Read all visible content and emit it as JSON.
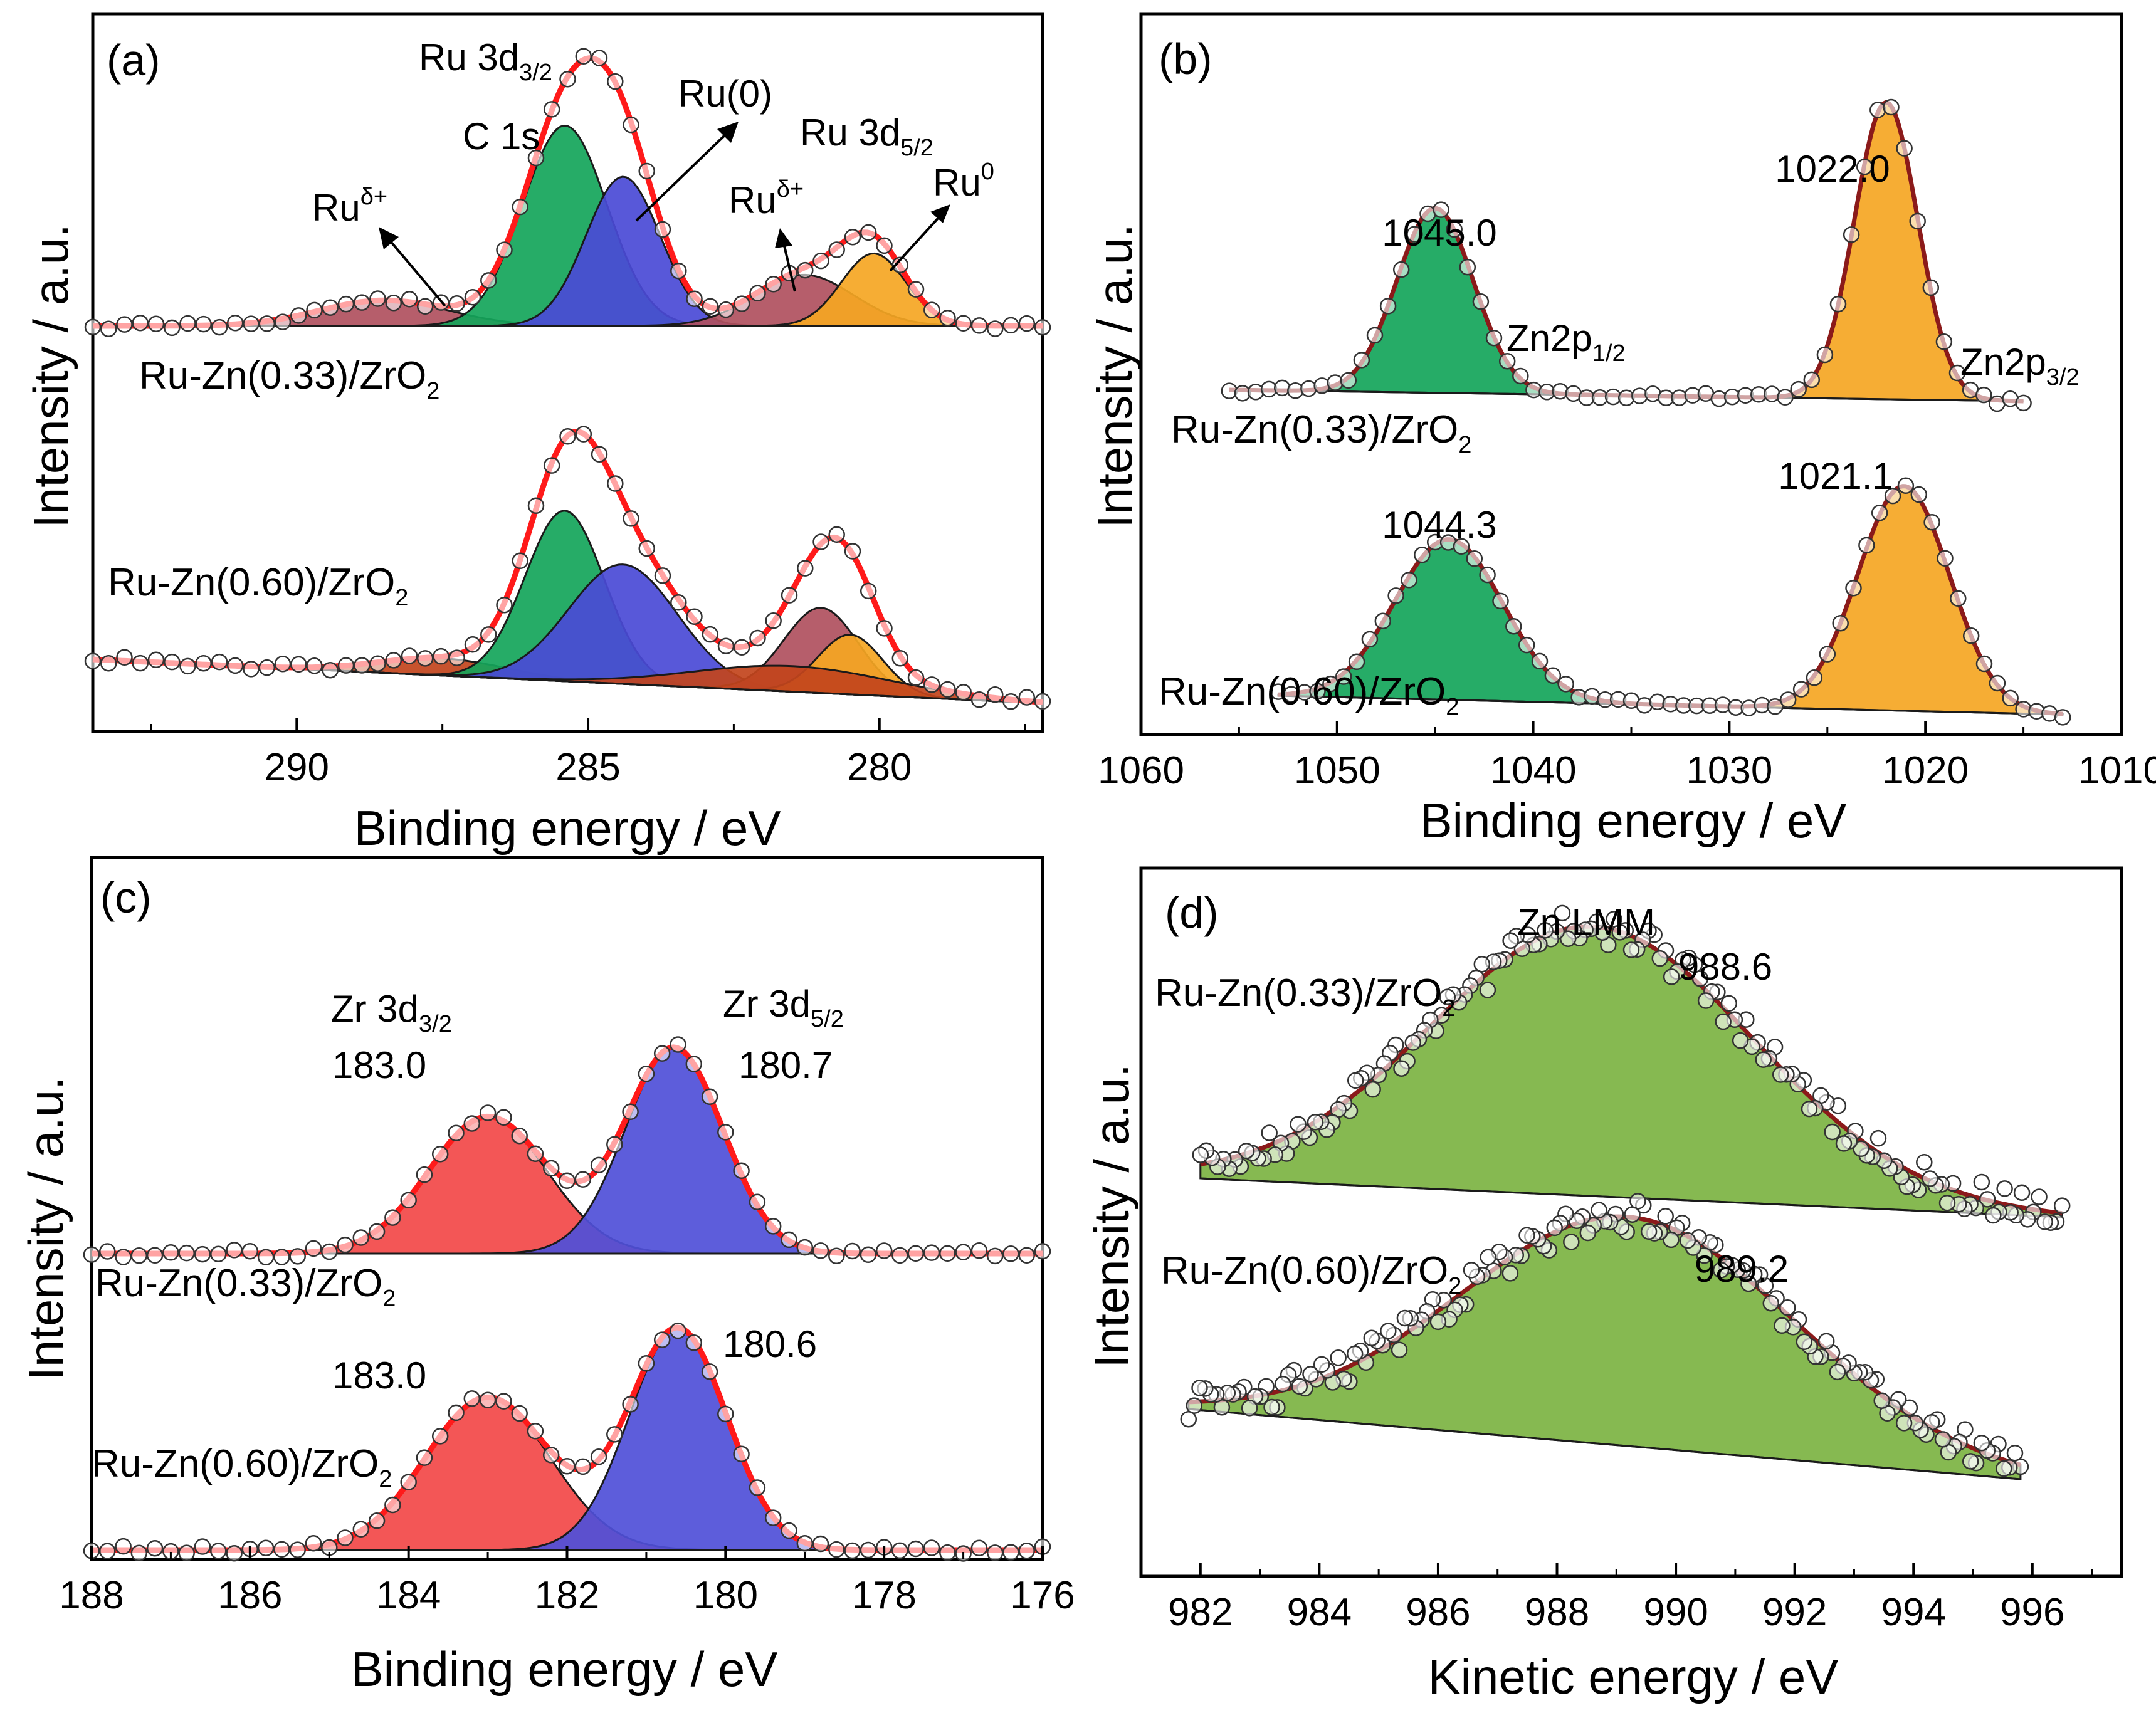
{
  "colors": {
    "fit": "#ff1a1a",
    "fit_dark": "#8b1a1a",
    "green": "#14a55a",
    "green_dark": "#0e7a52",
    "blue": "#4a4ad6",
    "mauve": "#b0505e",
    "rust": "#c2441c",
    "orange": "#f5a623",
    "red_fill": "#f24848",
    "blue_fill": "#4f4fd8",
    "olive": "#7cb342"
  },
  "chart_data": [
    {
      "id": "a",
      "type": "line",
      "panel_label": "(a)",
      "xlabel": "Binding energy  / eV",
      "ylabel": "Intensity / a.u.",
      "xlim": [
        293.5,
        277.2
      ],
      "xticks": [
        290,
        285,
        280
      ],
      "tick_labels": [
        "290",
        "285",
        "280"
      ],
      "samples": [
        {
          "name": "Ru-Zn(0.33)/ZrO2",
          "label_main": "Ru-Zn(0.33)/ZrO",
          "label_sub": "2",
          "baseline": 0.1,
          "components": [
            {
              "name": "Ruδ+ (3d3/2)",
              "center": 288.5,
              "height": 0.06,
              "fwhm": 2.6,
              "color": "mauve"
            },
            {
              "name": "C 1s",
              "center": 285.4,
              "height": 0.47,
              "fwhm": 1.7,
              "color": "green"
            },
            {
              "name": "Ru(0) 3d3/2",
              "center": 284.4,
              "height": 0.35,
              "fwhm": 1.5,
              "color": "blue"
            },
            {
              "name": "Ruδ+ (3d5/2)",
              "center": 281.3,
              "height": 0.12,
              "fwhm": 2.0,
              "color": "mauve"
            },
            {
              "name": "Ru0 3d5/2",
              "center": 280.1,
              "height": 0.17,
              "fwhm": 1.3,
              "color": "orange"
            }
          ]
        },
        {
          "name": "Ru-Zn(0.60)/ZrO2",
          "label_main": "Ru-Zn(0.60)/ZrO",
          "label_sub": "2",
          "baseline": 0.1,
          "components": [
            {
              "name": "Ruδ+ (3d3/2)",
              "center": 287.5,
              "height": 0.04,
              "fwhm": 2.6,
              "color": "rust"
            },
            {
              "name": "C 1s",
              "center": 285.4,
              "height": 0.4,
              "fwhm": 1.6,
              "color": "green"
            },
            {
              "name": "Ru(0) 3d3/2",
              "center": 284.4,
              "height": 0.28,
              "fwhm": 2.2,
              "color": "blue"
            },
            {
              "name": "Ruδ+ (3d5/2)",
              "center": 281.0,
              "height": 0.2,
              "fwhm": 1.5,
              "color": "mauve"
            },
            {
              "name": "Ru0 3d5/2",
              "center": 280.5,
              "height": 0.14,
              "fwhm": 1.3,
              "color": "orange"
            },
            {
              "name": "Ru (broad)",
              "center": 281.5,
              "height": 0.06,
              "fwhm": 4.0,
              "color": "rust"
            }
          ]
        }
      ],
      "annotations": [
        {
          "main": "Ru 3d",
          "sub": "3/2"
        },
        {
          "main": "C 1s"
        },
        {
          "main": "Ru(0)"
        },
        {
          "main": "Ru 3d",
          "sub": "5/2"
        },
        {
          "main": "Ru",
          "sup": "δ+"
        },
        {
          "main": "Ru",
          "sup": "δ+"
        },
        {
          "main": "Ru",
          "sup": "0"
        }
      ]
    },
    {
      "id": "b",
      "type": "line",
      "panel_label": "(b)",
      "xlabel": "Binding energy  / eV",
      "ylabel": "Intensity / a.u.",
      "xlim": [
        1060,
        1010
      ],
      "xticks": [
        1060,
        1050,
        1040,
        1030,
        1020,
        1010
      ],
      "tick_labels": [
        "1060",
        "1050",
        "1040",
        "1030",
        "1020",
        "1010"
      ],
      "samples": [
        {
          "name": "Ru-Zn(0.33)/ZrO2",
          "label_main": "Ru-Zn(0.33)/ZrO",
          "label_sub": "2",
          "range": [
            1055.5,
            1015.0
          ],
          "components": [
            {
              "name": "Zn2p1/2",
              "center": 1045.0,
              "height": 0.46,
              "fwhm": 4.6,
              "color": "green"
            },
            {
              "name": "Zn2p3/2",
              "center": 1022.0,
              "height": 0.74,
              "fwhm": 3.8,
              "color": "orange"
            }
          ],
          "peak_labels": [
            "1045.0",
            "1022.0"
          ]
        },
        {
          "name": "Ru-Zn(0.60)/ZrO2",
          "label_main": "Ru-Zn(0.60)/ZrO",
          "label_sub": "2",
          "range": [
            1053.0,
            1013.0
          ],
          "components": [
            {
              "name": "Zn2p1/2",
              "center": 1044.3,
              "height": 0.4,
              "fwhm": 6.5,
              "color": "green"
            },
            {
              "name": "Zn2p3/2",
              "center": 1021.1,
              "height": 0.56,
              "fwhm": 5.5,
              "color": "orange"
            }
          ],
          "peak_labels": [
            "1044.3",
            "1021.1"
          ]
        }
      ],
      "annotations": [
        {
          "main": "Zn2p",
          "sub": "1/2"
        },
        {
          "main": "Zn2p",
          "sub": "3/2"
        }
      ]
    },
    {
      "id": "c",
      "type": "line",
      "panel_label": "(c)",
      "xlabel": "Binding energy / eV",
      "ylabel": "Intensity / a.u.",
      "xlim": [
        188,
        176
      ],
      "xticks": [
        188,
        186,
        184,
        182,
        180,
        178,
        176
      ],
      "tick_labels": [
        "188",
        "186",
        "184",
        "182",
        "180",
        "178",
        "176"
      ],
      "samples": [
        {
          "name": "Ru-Zn(0.33)/ZrO2",
          "label_main": "Ru-Zn(0.33)/ZrO",
          "label_sub": "2",
          "components": [
            {
              "name": "Zr 3d3/2",
              "center": 183.0,
              "height": 0.52,
              "fwhm": 1.75,
              "color": "red_fill"
            },
            {
              "name": "Zr 3d5/2",
              "center": 180.65,
              "height": 0.78,
              "fwhm": 1.45,
              "color": "blue_fill"
            }
          ],
          "peak_labels": [
            "183.0",
            "180.7"
          ]
        },
        {
          "name": "Ru-Zn(0.60)/ZrO2",
          "label_main": "Ru-Zn(0.60)/ZrO",
          "label_sub": "2",
          "components": [
            {
              "name": "Zr 3d3/2",
              "center": 183.0,
              "height": 0.58,
              "fwhm": 1.85,
              "color": "red_fill"
            },
            {
              "name": "Zr 3d5/2",
              "center": 180.6,
              "height": 0.84,
              "fwhm": 1.45,
              "color": "blue_fill"
            }
          ],
          "peak_labels": [
            "183.0",
            "180.6"
          ]
        }
      ],
      "annotations": [
        {
          "main": "Zr 3d",
          "sub": "3/2"
        },
        {
          "main": "Zr 3d",
          "sub": "5/2"
        }
      ]
    },
    {
      "id": "d",
      "type": "line",
      "panel_label": "(d)",
      "xlabel": "Kinetic energy / eV",
      "ylabel": "Intensity / a.u.",
      "xlim": [
        981,
        997.5
      ],
      "xticks": [
        982,
        984,
        986,
        988,
        990,
        992,
        994,
        996
      ],
      "tick_labels": [
        "982",
        "984",
        "986",
        "988",
        "990",
        "992",
        "994",
        "996"
      ],
      "samples": [
        {
          "name": "Ru-Zn(0.33)/ZrO2",
          "label_main": "Ru-Zn(0.33)/ZrO",
          "label_sub": "2",
          "range": [
            982.0,
            996.5
          ],
          "components": [
            {
              "name": "Zn LMM",
              "center": 988.6,
              "height": 1.0,
              "fwhm": 6.4,
              "color": "olive"
            }
          ],
          "peak_labels": [
            "988.6"
          ]
        },
        {
          "name": "Ru-Zn(0.60)/ZrO2",
          "label_main": "Ru-Zn(0.60)/ZrO",
          "label_sub": "2",
          "range": [
            981.8,
            995.8
          ],
          "components": [
            {
              "name": "Zn LMM",
              "center": 989.2,
              "height": 0.85,
              "fwhm": 6.6,
              "color": "olive"
            }
          ],
          "peak_labels": [
            "989.2"
          ]
        }
      ],
      "annotations": [
        {
          "main": "Zn LMM"
        }
      ]
    }
  ]
}
